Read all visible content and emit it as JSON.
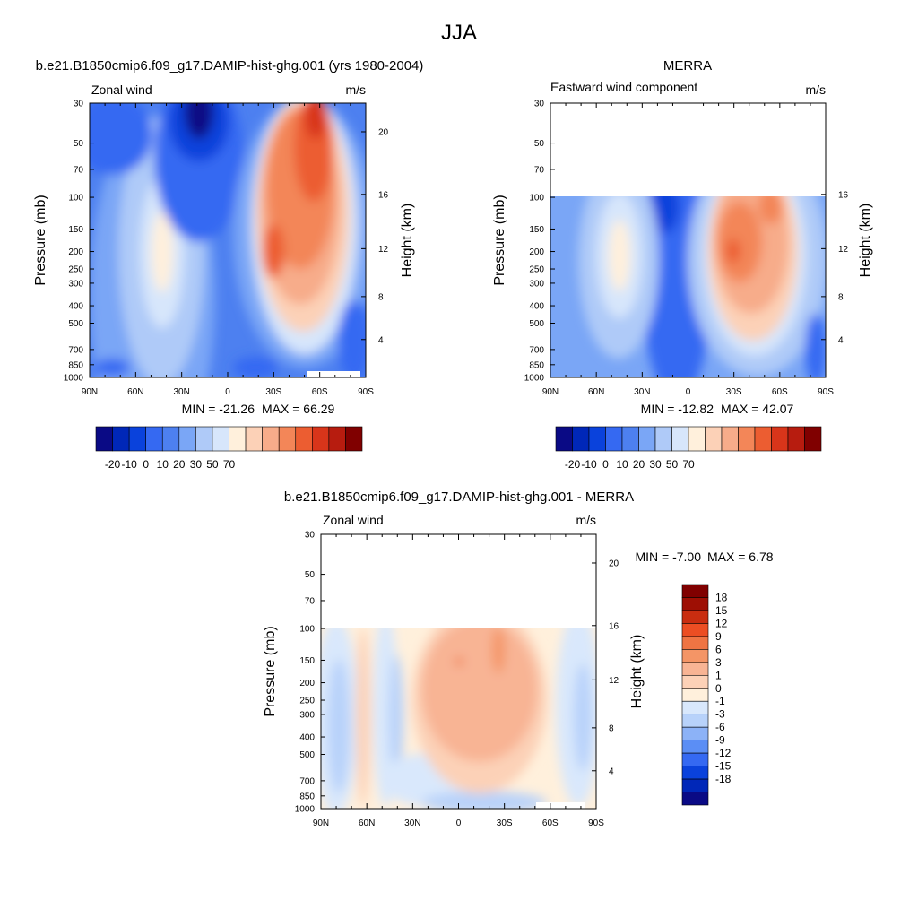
{
  "page_title": "JJA",
  "fill_colors": {
    "absolute": [
      "#0a0a85",
      "#0027b8",
      "#0a42dc",
      "#3569f2",
      "#4d80f0",
      "#7aa6f6",
      "#afcaf8",
      "#d7e6fb",
      "#fff0dc",
      "#fcd1b7",
      "#f7ac8a",
      "#f38658",
      "#ec5d31",
      "#d8351a",
      "#b71c0f",
      "#800000"
    ],
    "difference": [
      "#0a0a85",
      "#0027b8",
      "#0a42dc",
      "#3569f2",
      "#5b8ef5",
      "#8cb2f7",
      "#b8d2fa",
      "#d9e8fc",
      "#fff0dc",
      "#fcd1b7",
      "#f8b494",
      "#f49566",
      "#ef7443",
      "#ec4e23",
      "#c92d10",
      "#9e0f04",
      "#800000"
    ]
  },
  "chart_data": [
    {
      "type": "heatmap",
      "title": "b.e21.B1850cmip6.f09_g17.DAMIP-hist-ghg.001 (yrs 1980-2004)",
      "left_label": "Zonal wind",
      "right_label": "m/s",
      "ylabel": "Pressure (mb)",
      "y2label": "Height (km)",
      "x_ticks": [
        "90N",
        "60N",
        "30N",
        "0",
        "30S",
        "60S",
        "90S"
      ],
      "y_ticks": [
        30,
        50,
        70,
        100,
        150,
        200,
        250,
        300,
        400,
        500,
        700,
        850,
        1000
      ],
      "ylim": [
        1000,
        30
      ],
      "y2_ticks": [
        4,
        8,
        12,
        16,
        20
      ],
      "stats": {
        "min_label": "MIN = -21.26",
        "max_label": "MAX =  66.29",
        "min": -21.26,
        "max": 66.29
      },
      "colorbar": {
        "orientation": "horizontal",
        "labels": [
          "-20",
          "-10",
          "0",
          "10",
          "20",
          "30",
          "50",
          "70"
        ]
      },
      "features": [
        {
          "lat": -20,
          "p": 50,
          "value": -21
        },
        {
          "lat": -43,
          "p": 200,
          "value": 12
        },
        {
          "lat": 31,
          "p": 180,
          "value": 45
        },
        {
          "lat": 56,
          "p": 40,
          "value": 66
        }
      ]
    },
    {
      "type": "heatmap",
      "title": "MERRA",
      "left_label": "Eastward wind component",
      "right_label": "m/s",
      "ylabel": "Pressure (mb)",
      "y2label": "Height (km)",
      "x_ticks": [
        "90N",
        "60N",
        "30N",
        "0",
        "30S",
        "60S",
        "90S"
      ],
      "y_ticks": [
        30,
        50,
        70,
        100,
        150,
        200,
        250,
        300,
        400,
        500,
        700,
        850,
        1000
      ],
      "ylim": [
        1000,
        30
      ],
      "data_top_pressure": 100,
      "y2_ticks": [
        4,
        8,
        12,
        16
      ],
      "stats": {
        "min_label": "MIN = -12.82",
        "max_label": "MAX =  42.07",
        "min": -12.82,
        "max": 42.07
      },
      "colorbar": {
        "orientation": "horizontal",
        "labels": [
          "-20",
          "-10",
          "0",
          "10",
          "20",
          "30",
          "50",
          "70"
        ]
      },
      "features": [
        {
          "lat": -5,
          "p": 200,
          "value": -12
        },
        {
          "lat": -43,
          "p": 200,
          "value": 12
        },
        {
          "lat": 30,
          "p": 200,
          "value": 42
        },
        {
          "lat": 55,
          "p": 100,
          "value": 35
        }
      ]
    },
    {
      "type": "heatmap",
      "title": "b.e21.B1850cmip6.f09_g17.DAMIP-hist-ghg.001 - MERRA",
      "left_label": "Zonal wind",
      "right_label": "m/s",
      "ylabel": "Pressure (mb)",
      "y2label": "Height (km)",
      "x_ticks": [
        "90N",
        "60N",
        "30N",
        "0",
        "30S",
        "60S",
        "90S"
      ],
      "y_ticks": [
        30,
        50,
        70,
        100,
        150,
        200,
        250,
        300,
        400,
        500,
        700,
        850,
        1000
      ],
      "ylim": [
        1000,
        30
      ],
      "data_top_pressure": 100,
      "y2_ticks": [
        4,
        8,
        12,
        16,
        20
      ],
      "stats": {
        "min_label": "MIN =  -7.00",
        "max_label": "MAX =   6.78",
        "min": -7.0,
        "max": 6.78
      },
      "colorbar": {
        "orientation": "vertical",
        "labels": [
          "18",
          "15",
          "12",
          "9",
          "6",
          "3",
          "1",
          "0",
          "-1",
          "-3",
          "-6",
          "-9",
          "-12",
          "-15",
          "-18"
        ]
      },
      "features": [
        {
          "lat": -80,
          "p": 300,
          "value": -4
        },
        {
          "lat": 0,
          "p": 150,
          "value": 5
        },
        {
          "lat": 22,
          "p": 150,
          "value": 6
        },
        {
          "lat": 30,
          "p": 500,
          "value": 3
        }
      ]
    }
  ]
}
